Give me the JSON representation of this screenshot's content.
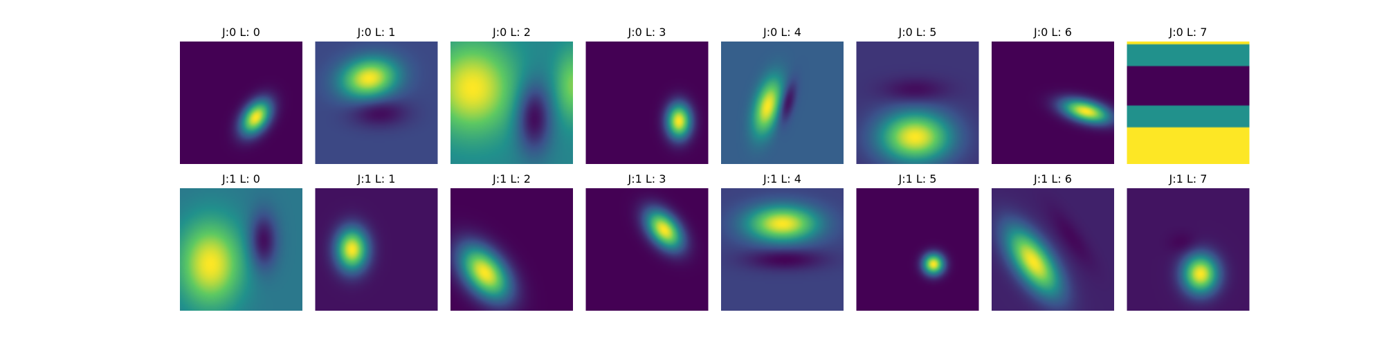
{
  "chart_data": {
    "type": "heatmap",
    "colormap": "viridis",
    "colormap_stops": [
      "#440154",
      "#3b528b",
      "#21918c",
      "#5ec962",
      "#fde725"
    ],
    "grid": false,
    "rows": 2,
    "cols": 8,
    "panels": [
      {
        "title": "J:0 L: 0",
        "background": 0.0,
        "blobs": [
          {
            "cx": 0.62,
            "cy": 0.62,
            "sx": 0.07,
            "sy": 0.11,
            "rot": 35,
            "amp": 1.0
          }
        ]
      },
      {
        "title": "J:0 L: 1",
        "background": 0.22,
        "blobs": [
          {
            "cx": 0.44,
            "cy": 0.3,
            "sx": 0.16,
            "sy": 0.11,
            "rot": -10,
            "amp": 0.78
          },
          {
            "cx": 0.52,
            "cy": 0.58,
            "sx": 0.16,
            "sy": 0.08,
            "rot": 0,
            "amp": -0.2
          }
        ]
      },
      {
        "title": "J:0 L: 2",
        "background": 0.45,
        "blobs": [
          {
            "cx": 0.18,
            "cy": 0.38,
            "sx": 0.24,
            "sy": 0.26,
            "rot": 0,
            "amp": 0.55
          },
          {
            "cx": 1.0,
            "cy": 0.36,
            "sx": 0.1,
            "sy": 0.2,
            "rot": 0,
            "amp": 0.35
          },
          {
            "cx": 0.68,
            "cy": 0.62,
            "sx": 0.1,
            "sy": 0.2,
            "rot": 0,
            "amp": -0.45
          }
        ]
      },
      {
        "title": "J:0 L: 3",
        "background": 0.0,
        "blobs": [
          {
            "cx": 0.76,
            "cy": 0.65,
            "sx": 0.07,
            "sy": 0.1,
            "rot": 0,
            "amp": 1.0
          }
        ]
      },
      {
        "title": "J:0 L: 4",
        "background": 0.3,
        "blobs": [
          {
            "cx": 0.38,
            "cy": 0.53,
            "sx": 0.07,
            "sy": 0.16,
            "rot": 15,
            "amp": 0.7
          },
          {
            "cx": 0.54,
            "cy": 0.5,
            "sx": 0.04,
            "sy": 0.12,
            "rot": 15,
            "amp": -0.3
          }
        ]
      },
      {
        "title": "J:0 L: 5",
        "background": 0.16,
        "blobs": [
          {
            "cx": 0.48,
            "cy": 0.78,
            "sx": 0.2,
            "sy": 0.14,
            "rot": 0,
            "amp": 0.84
          },
          {
            "cx": 0.48,
            "cy": 0.4,
            "sx": 0.18,
            "sy": 0.07,
            "rot": 0,
            "amp": -0.14
          }
        ]
      },
      {
        "title": "J:0 L: 6",
        "background": 0.0,
        "blobs": [
          {
            "cx": 0.77,
            "cy": 0.57,
            "sx": 0.14,
            "sy": 0.06,
            "rot": 15,
            "amp": 1.0
          }
        ]
      },
      {
        "title": "J:0 L: 7",
        "background": 0.0,
        "bands": [
          {
            "from": 0.0,
            "to": 0.02,
            "value": 1.0
          },
          {
            "from": 0.02,
            "to": 0.2,
            "value": 0.5
          },
          {
            "from": 0.2,
            "to": 0.52,
            "value": 0.0
          },
          {
            "from": 0.52,
            "to": 0.7,
            "value": 0.5
          },
          {
            "from": 0.7,
            "to": 1.0,
            "value": 1.0
          }
        ]
      },
      {
        "title": "J:1 L: 0",
        "background": 0.4,
        "blobs": [
          {
            "cx": 0.25,
            "cy": 0.62,
            "sx": 0.18,
            "sy": 0.24,
            "rot": 0,
            "amp": 0.6
          },
          {
            "cx": 0.68,
            "cy": 0.43,
            "sx": 0.08,
            "sy": 0.16,
            "rot": 0,
            "amp": -0.38
          }
        ]
      },
      {
        "title": "J:1 L: 1",
        "background": 0.05,
        "blobs": [
          {
            "cx": 0.3,
            "cy": 0.5,
            "sx": 0.09,
            "sy": 0.12,
            "rot": 0,
            "amp": 0.95
          }
        ]
      },
      {
        "title": "J:1 L: 2",
        "background": 0.0,
        "blobs": [
          {
            "cx": 0.28,
            "cy": 0.69,
            "sx": 0.11,
            "sy": 0.18,
            "rot": -40,
            "amp": 1.0
          }
        ]
      },
      {
        "title": "J:1 L: 3",
        "background": 0.0,
        "blobs": [
          {
            "cx": 0.64,
            "cy": 0.34,
            "sx": 0.08,
            "sy": 0.13,
            "rot": -40,
            "amp": 1.0
          }
        ]
      },
      {
        "title": "J:1 L: 4",
        "background": 0.2,
        "blobs": [
          {
            "cx": 0.5,
            "cy": 0.29,
            "sx": 0.2,
            "sy": 0.1,
            "rot": 0,
            "amp": 0.8
          },
          {
            "cx": 0.52,
            "cy": 0.58,
            "sx": 0.22,
            "sy": 0.06,
            "rot": 0,
            "amp": -0.2
          }
        ]
      },
      {
        "title": "J:1 L: 5",
        "background": 0.0,
        "blobs": [
          {
            "cx": 0.63,
            "cy": 0.62,
            "sx": 0.06,
            "sy": 0.06,
            "rot": 0,
            "amp": 1.0
          }
        ]
      },
      {
        "title": "J:1 L: 6",
        "background": 0.1,
        "blobs": [
          {
            "cx": 0.34,
            "cy": 0.6,
            "sx": 0.1,
            "sy": 0.22,
            "rot": -35,
            "amp": 0.9
          },
          {
            "cx": 0.65,
            "cy": 0.4,
            "sx": 0.06,
            "sy": 0.2,
            "rot": -35,
            "amp": -0.08
          }
        ]
      },
      {
        "title": "J:1 L: 7",
        "background": 0.06,
        "blobs": [
          {
            "cx": 0.6,
            "cy": 0.7,
            "sx": 0.1,
            "sy": 0.11,
            "rot": 0,
            "amp": 0.94
          },
          {
            "cx": 0.46,
            "cy": 0.45,
            "sx": 0.08,
            "sy": 0.06,
            "rot": 0,
            "amp": -0.06
          }
        ]
      }
    ]
  }
}
